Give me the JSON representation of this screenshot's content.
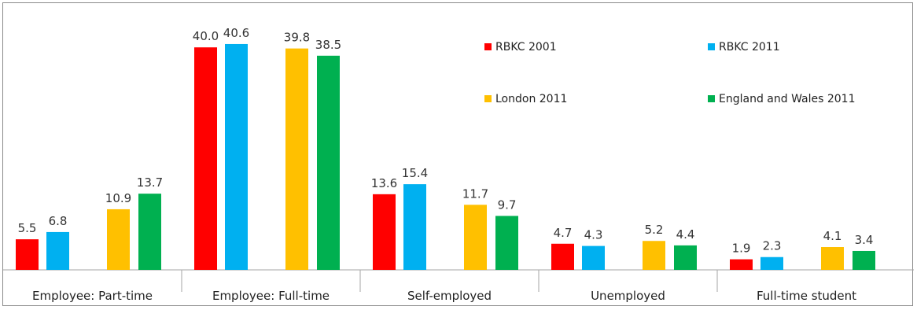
{
  "chart_data": {
    "type": "bar",
    "categories": [
      "Employee: Part-time",
      "Employee: Full-time",
      "Self-employed",
      "Unemployed",
      "Full-time student"
    ],
    "series": [
      {
        "name": "RBKC 2001",
        "color": "#ff0000",
        "values": [
          5.5,
          40.0,
          13.6,
          4.7,
          1.9
        ]
      },
      {
        "name": "RBKC 2011",
        "color": "#00b0f0",
        "values": [
          6.8,
          40.6,
          15.4,
          4.3,
          2.3
        ]
      },
      {
        "name": "London 2011",
        "color": "#ffc000",
        "values": [
          10.9,
          39.8,
          11.7,
          5.2,
          4.1
        ]
      },
      {
        "name": "England and Wales 2011",
        "color": "#00b050",
        "values": [
          13.7,
          38.5,
          9.7,
          4.4,
          3.4
        ]
      }
    ],
    "value_labels": [
      [
        "5.5",
        "40.0",
        "13.6",
        "4.7",
        "1.9"
      ],
      [
        "6.8",
        "40.6",
        "15.4",
        "4.3",
        "2.3"
      ],
      [
        "10.9",
        "39.8",
        "11.7",
        "5.2",
        "4.1"
      ],
      [
        "13.7",
        "38.5",
        "9.7",
        "4.4",
        "3.4"
      ]
    ],
    "ylim": [
      0,
      45
    ],
    "grid": false,
    "legend_position": "top-right",
    "title": "",
    "xlabel": "",
    "ylabel": ""
  }
}
